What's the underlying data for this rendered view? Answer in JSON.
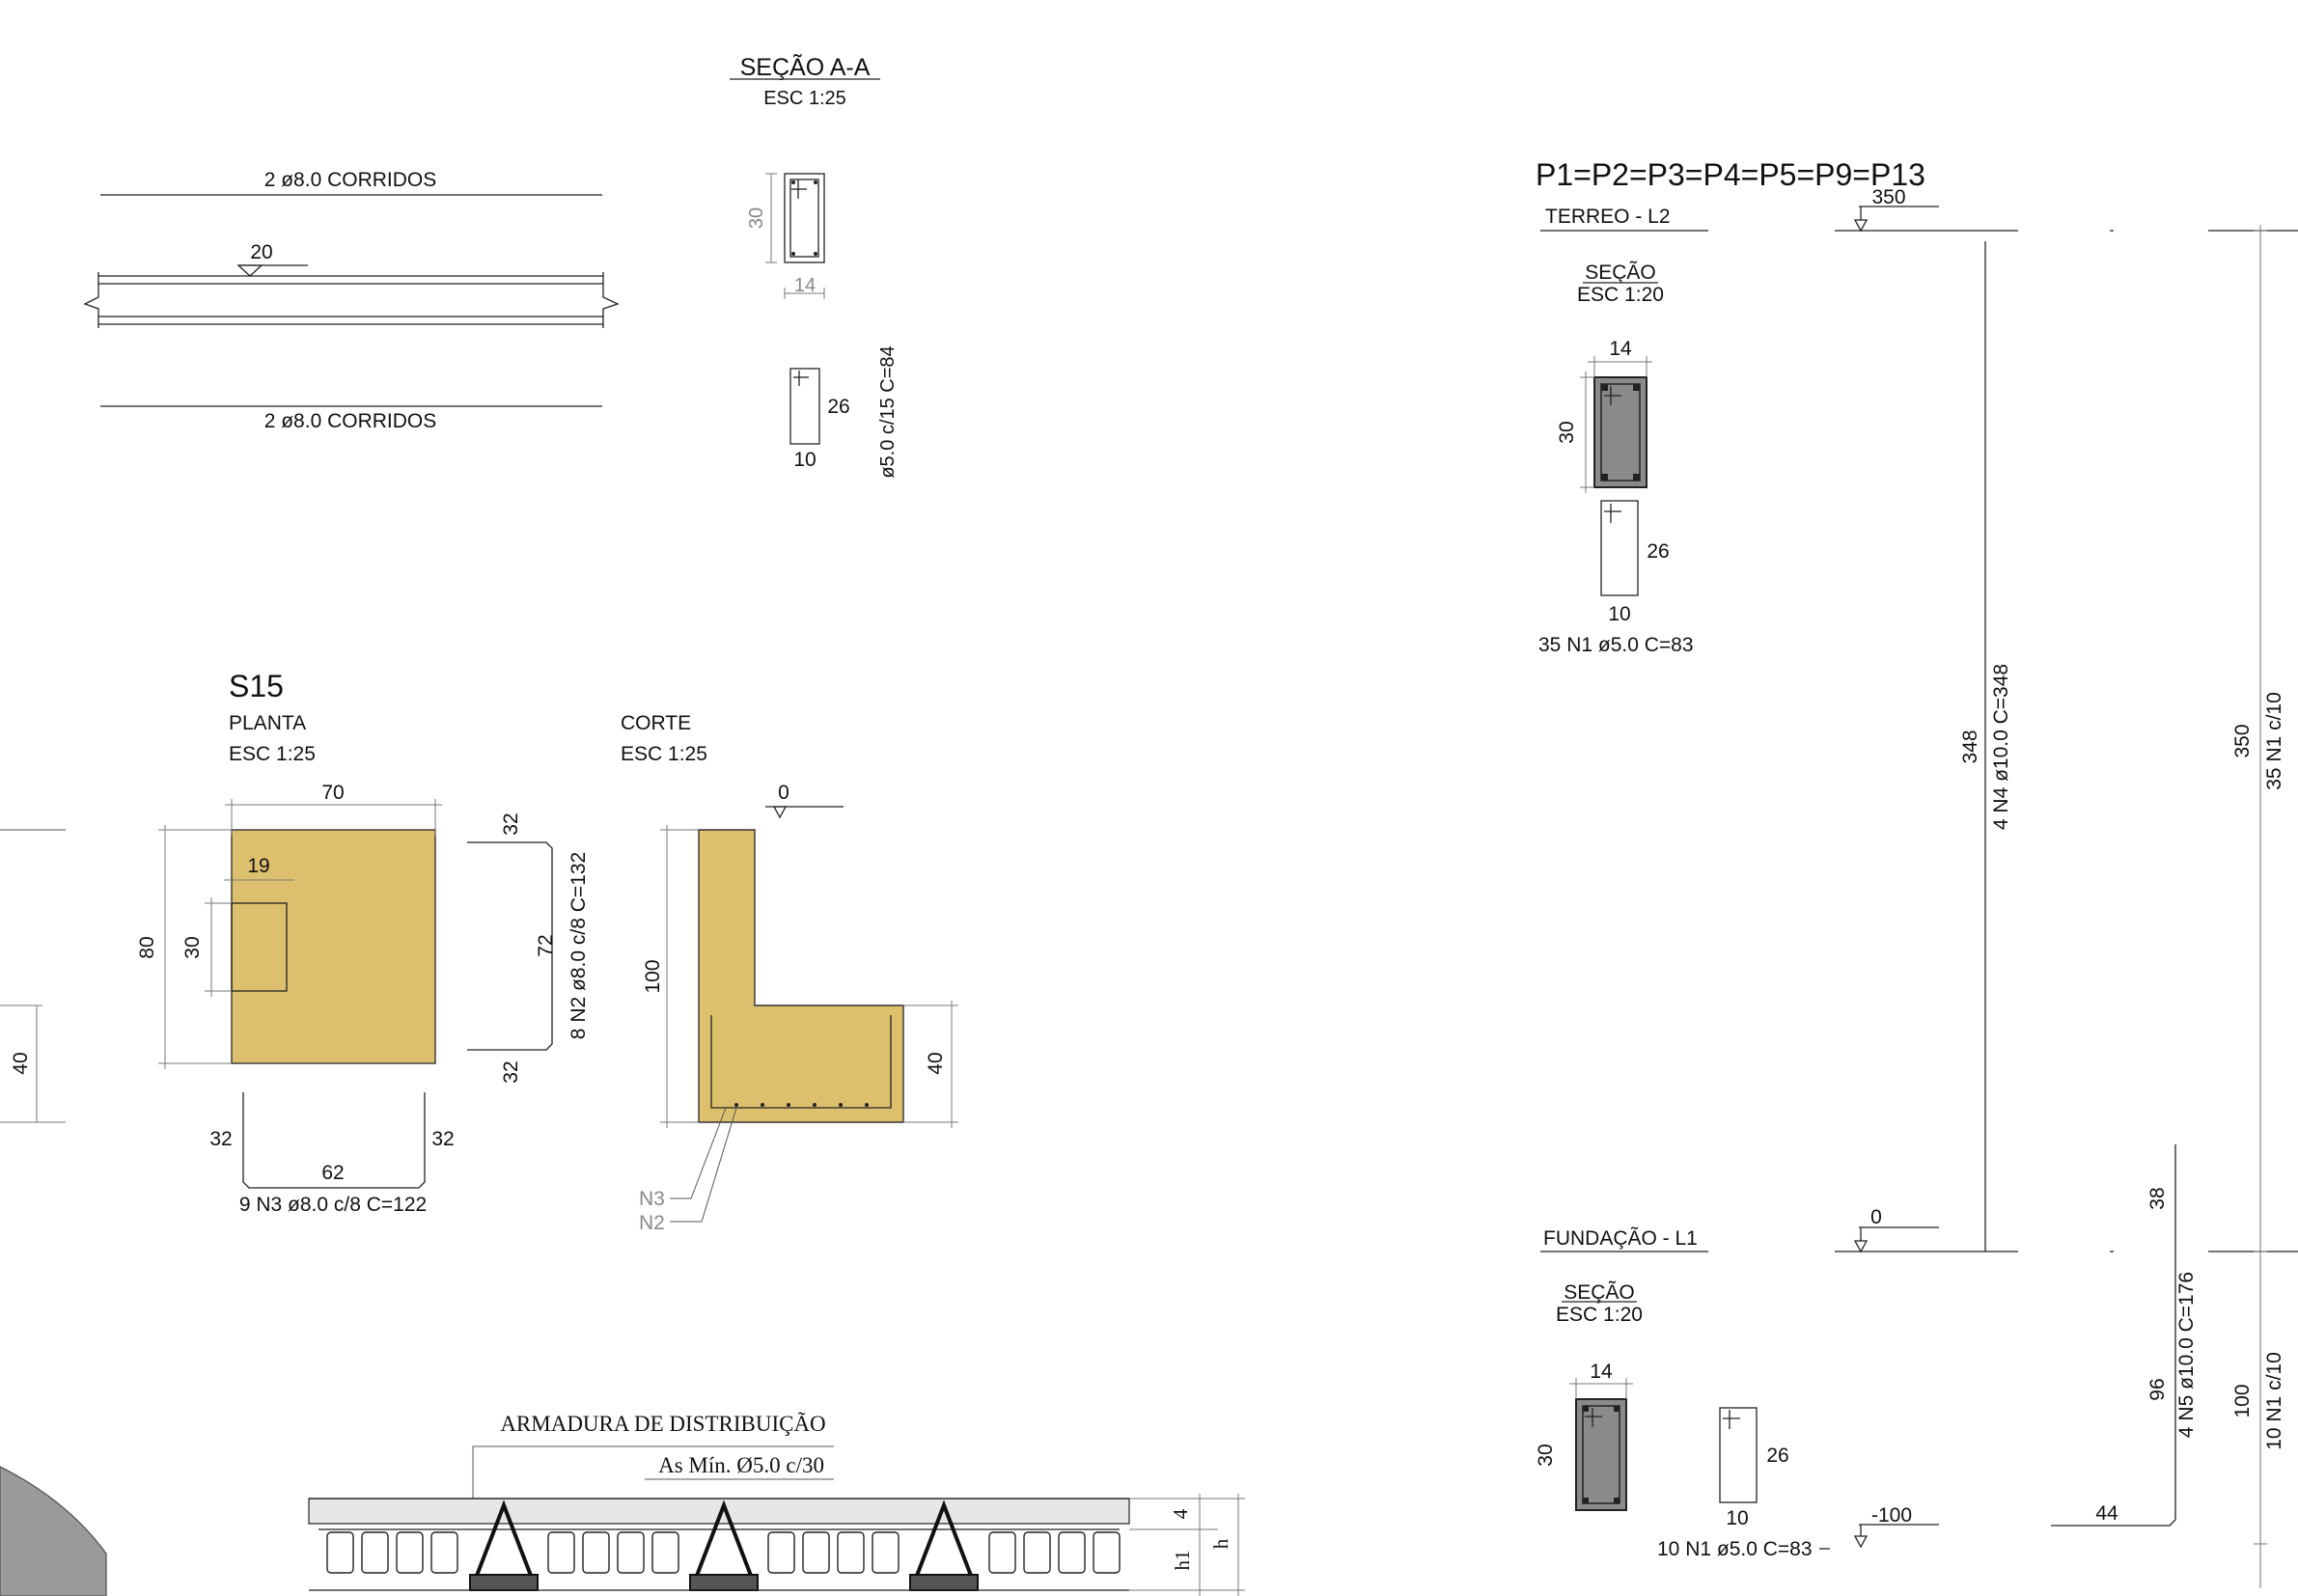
{
  "beam_section": {
    "title": "SEÇÃO A-A",
    "scale": "ESC 1:25",
    "top_bars": "2 ø8.0  CORRIDOS",
    "bottom_bars": "2 ø8.0  CORRIDOS",
    "level": "20",
    "height": "30",
    "width": "14",
    "stirrup_height": "26",
    "stirrup_width": "10",
    "stirrup_label": "ø5.0 c/15 C=84"
  },
  "footing": {
    "name": "S15",
    "plan_title": "PLANTA",
    "plan_scale": "ESC 1:25",
    "cut_title": "CORTE",
    "cut_scale": "ESC 1:25",
    "width": "70",
    "length": "80",
    "pillar_offset": "19",
    "pillar_dim": "30",
    "n2_hook_top": "32",
    "n2_length": "72",
    "n2_hook_bottom": "32",
    "n2_label": "8 N2 ø8.0 c/8 C=132",
    "n3_hook_left": "32",
    "n3_length": "62",
    "n3_hook_right": "32",
    "n3_label": "9 N3 ø8.0 c/8 C=122",
    "level": "0",
    "cut_height": "100",
    "base_height": "40",
    "left_dim": "40",
    "callout_n3": "N3",
    "callout_n2": "N2"
  },
  "slab": {
    "title": "ARMADURA DE DISTRIBUIÇÃO",
    "subtitle": "As Mín. Ø5.0 c/30",
    "dim_cap": "4",
    "dim_h1": "h1",
    "dim_h": "h"
  },
  "column": {
    "title": "P1=P2=P3=P4=P5=P9=P13",
    "top_level": "350",
    "top_floor": "TERREO - L2",
    "sec1_title": "SEÇÃO",
    "sec1_scale": "ESC 1:20",
    "sec1_width": "14",
    "sec1_height": "30",
    "sec1_stirrup_h": "26",
    "sec1_stirrup_w": "10",
    "sec1_stirrups": "35 N1 ø5.0 C=83",
    "long_bar_length": "348",
    "long_bar_label": "4 N4 ø10.0 C=348",
    "bottom_level": "0",
    "bottom_floor": "FUNDAÇÃO - L1",
    "sec2_title": "SEÇÃO",
    "sec2_scale": "ESC 1:20",
    "sec2_width": "14",
    "sec2_height": "30",
    "sec2_stirrup_h": "26",
    "sec2_stirrup_w": "10",
    "sec2_stirrups": "10 N1 ø5.0 C=83",
    "base_level": "-100",
    "n5_length": "96",
    "n5_label": "4 N5 ø10.0 C=176",
    "n5_top": "38",
    "n5_hook": "44",
    "upper_span": "350",
    "upper_stirrups": "35 N1 c/10",
    "lower_span": "100",
    "lower_stirrups": "10 N1 c/10"
  }
}
